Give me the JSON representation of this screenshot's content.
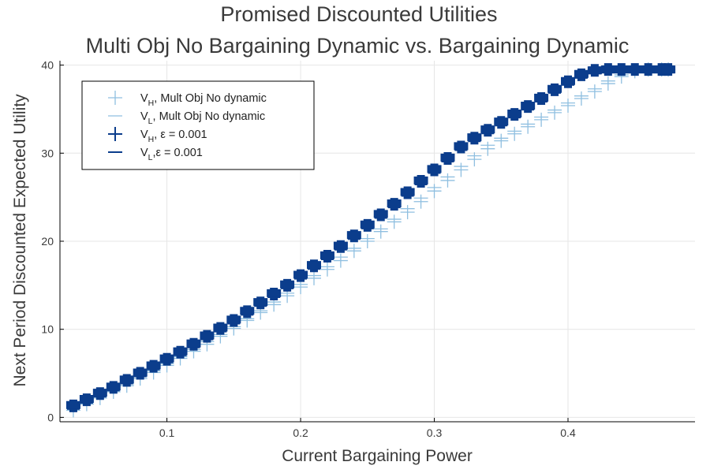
{
  "chart_data": {
    "type": "scatter",
    "title_lines": [
      "Promised Discounted Utilities",
      "Multi Obj No Bargaining Dynamic vs. Bargaining Dynamic"
    ],
    "xlabel": "Current Bargaining Power",
    "ylabel": "Next Period Discounted Expected Utility",
    "xlim": [
      0.02,
      0.495
    ],
    "ylim": [
      -0.5,
      40.5
    ],
    "xticks": [
      0.1,
      0.2,
      0.3,
      0.4
    ],
    "xtick_labels": [
      "0.1",
      "0.2",
      "0.3",
      "0.4"
    ],
    "yticks": [
      0,
      10,
      20,
      30,
      40
    ],
    "ytick_labels": [
      "0",
      "10",
      "20",
      "30",
      "40"
    ],
    "grid": true,
    "legend_position": "top-left",
    "x": [
      0.03,
      0.04,
      0.05,
      0.06,
      0.07,
      0.08,
      0.09,
      0.1,
      0.11,
      0.12,
      0.13,
      0.14,
      0.15,
      0.16,
      0.17,
      0.18,
      0.19,
      0.2,
      0.21,
      0.22,
      0.23,
      0.24,
      0.25,
      0.26,
      0.27,
      0.28,
      0.29,
      0.3,
      0.31,
      0.32,
      0.33,
      0.34,
      0.35,
      0.36,
      0.37,
      0.38,
      0.39,
      0.4,
      0.41,
      0.42,
      0.43,
      0.44,
      0.45,
      0.46,
      0.47,
      0.475
    ],
    "series": [
      {
        "name": "V_H, Mult Obj No dynamic",
        "label_main": "V",
        "label_sub": "H",
        "label_rest": ", Mult Obj No dynamic",
        "marker": "cross",
        "color": "#8fbfe0",
        "values": [
          0.8,
          1.5,
          2.2,
          2.9,
          3.6,
          4.4,
          5.1,
          5.9,
          6.7,
          7.5,
          8.3,
          9.2,
          10.1,
          11.0,
          11.9,
          12.8,
          13.8,
          14.8,
          15.8,
          16.8,
          17.8,
          18.9,
          20.0,
          21.1,
          22.2,
          23.3,
          24.5,
          25.7,
          26.9,
          28.1,
          29.3,
          30.5,
          31.4,
          32.2,
          33.0,
          33.8,
          34.6,
          35.4,
          36.2,
          37.0,
          37.9,
          38.7,
          39.3,
          39.5,
          39.5,
          39.5
        ]
      },
      {
        "name": "V_L, Mult Obj No dynamic",
        "label_main": "V",
        "label_sub": "L",
        "label_rest": ", Mult Obj No dynamic",
        "marker": "hline",
        "color": "#8fbfe0",
        "values": [
          1.0,
          1.7,
          2.4,
          3.1,
          3.8,
          4.6,
          5.3,
          6.1,
          6.9,
          7.7,
          8.6,
          9.4,
          10.3,
          11.2,
          12.1,
          13.1,
          14.1,
          15.1,
          16.1,
          17.1,
          18.2,
          19.2,
          20.3,
          21.4,
          22.5,
          23.7,
          24.9,
          26.1,
          27.3,
          28.5,
          29.7,
          30.9,
          31.7,
          32.5,
          33.3,
          34.1,
          34.9,
          35.7,
          36.5,
          37.3,
          38.2,
          38.9,
          39.4,
          39.5,
          39.5,
          39.5
        ]
      },
      {
        "name": "V_H, ε = 0.001",
        "label_main": "V",
        "label_sub": "H",
        "label_rest": ", ε = 0.001",
        "marker": "cross",
        "color": "#0b3d8c",
        "values": [
          1.3,
          2.0,
          2.7,
          3.4,
          4.2,
          5.0,
          5.8,
          6.6,
          7.4,
          8.3,
          9.2,
          10.1,
          11.0,
          12.0,
          13.0,
          14.0,
          15.0,
          16.1,
          17.2,
          18.3,
          19.4,
          20.6,
          21.8,
          23.0,
          24.2,
          25.5,
          26.8,
          28.1,
          29.4,
          30.7,
          31.7,
          32.6,
          33.5,
          34.4,
          35.3,
          36.2,
          37.2,
          38.1,
          38.9,
          39.4,
          39.5,
          39.5,
          39.5,
          39.5,
          39.5,
          39.5
        ]
      },
      {
        "name": "V_L,ε = 0.001",
        "label_main": "V",
        "label_sub": "L",
        "label_rest": ",ε = 0.001",
        "marker": "hline",
        "color": "#0b3d8c",
        "values": [
          1.4,
          2.1,
          2.8,
          3.5,
          4.3,
          5.1,
          5.9,
          6.7,
          7.5,
          8.4,
          9.3,
          10.2,
          11.1,
          12.1,
          13.1,
          14.1,
          15.1,
          16.2,
          17.3,
          18.4,
          19.5,
          20.7,
          21.9,
          23.1,
          24.3,
          25.6,
          26.9,
          28.2,
          29.5,
          30.8,
          31.8,
          32.7,
          33.6,
          34.5,
          35.4,
          36.3,
          37.3,
          38.2,
          39.0,
          39.4,
          39.5,
          39.5,
          39.5,
          39.5,
          39.5,
          39.5
        ]
      }
    ]
  }
}
